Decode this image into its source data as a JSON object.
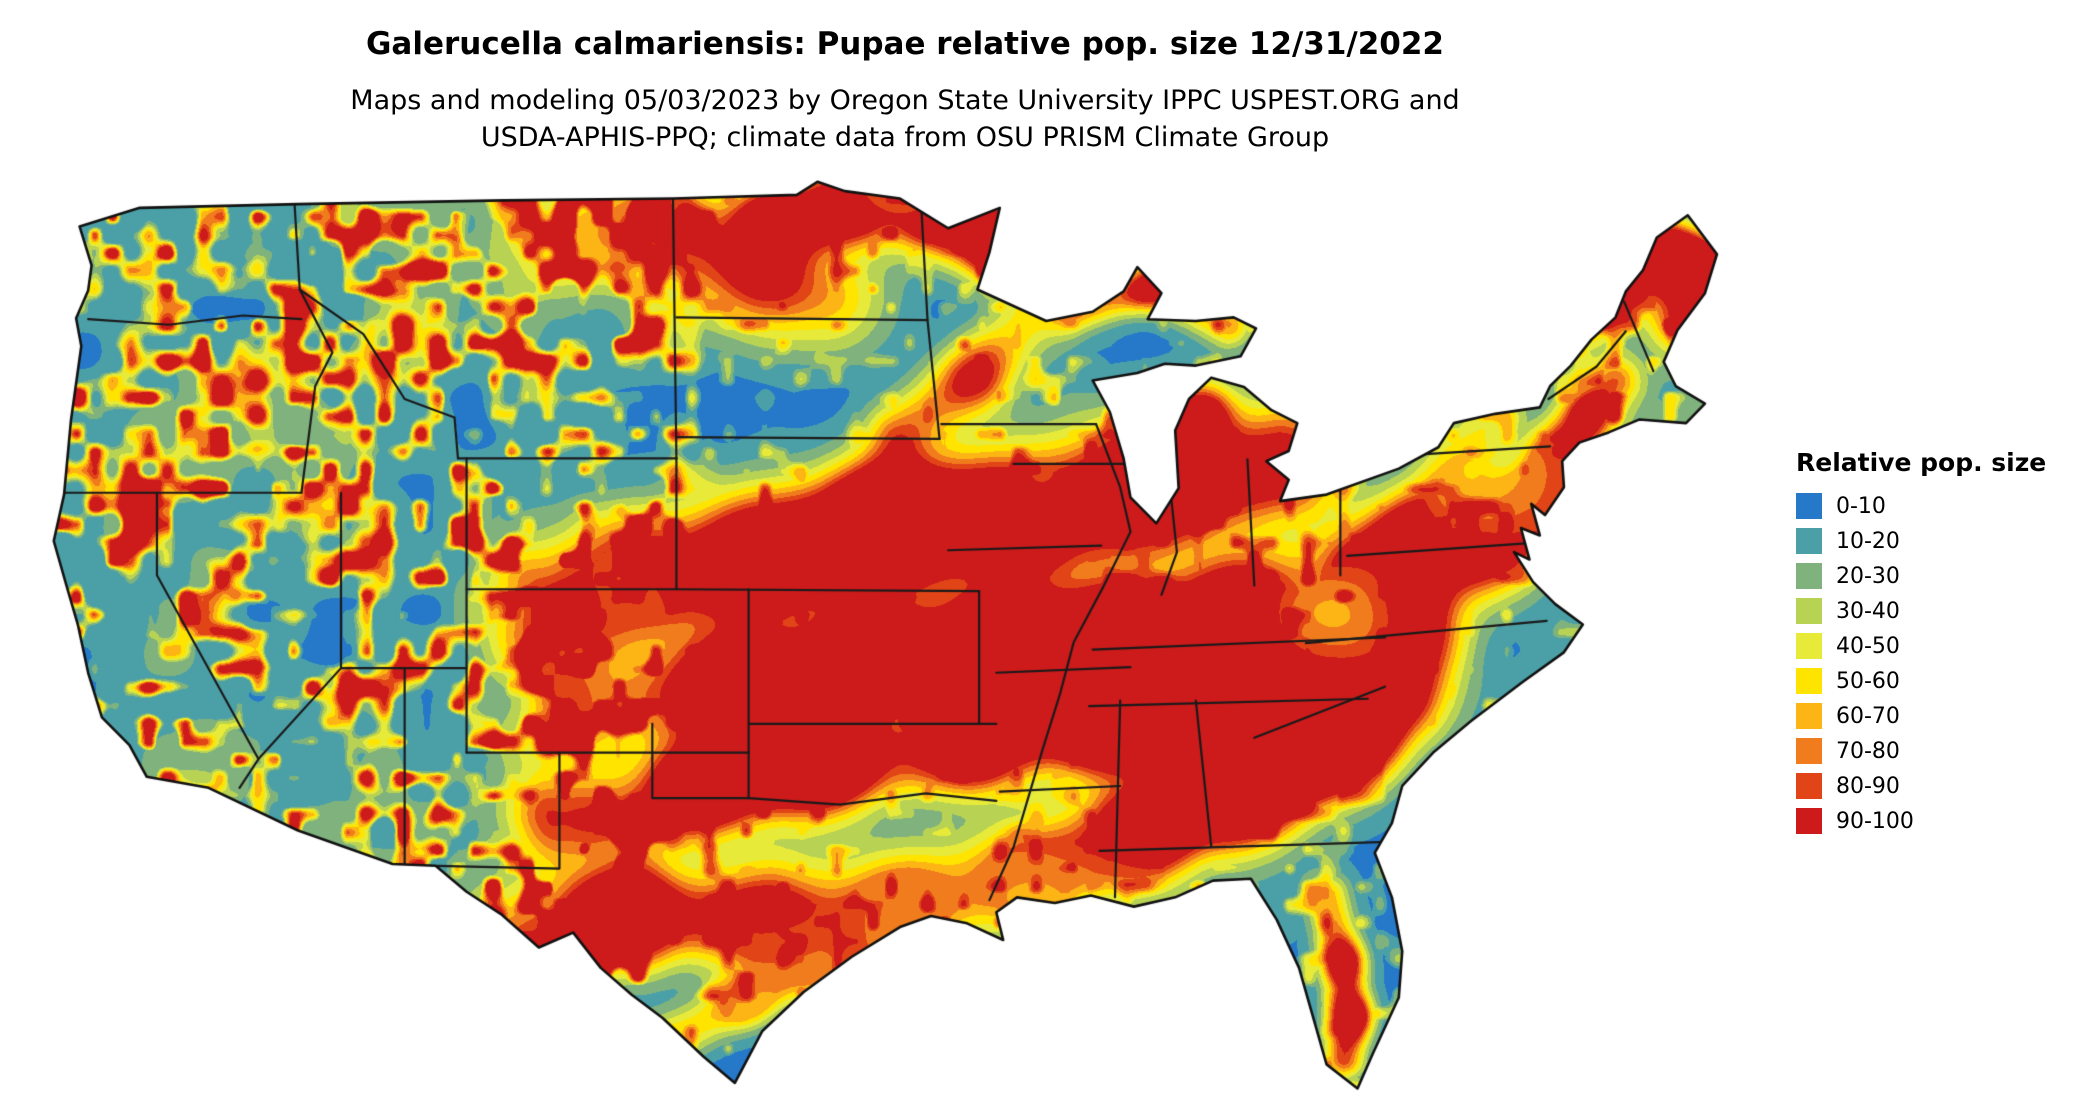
{
  "title": "Galerucella calmariensis: Pupae relative pop. size 12/31/2022",
  "subtitle": {
    "line1": "Maps and modeling 05/03/2023 by Oregon State University IPPC USPEST.ORG and",
    "line2": "USDA-APHIS-PPQ; climate data from OSU PRISM Climate Group"
  },
  "map": {
    "region": "Contiguous United States",
    "type": "raster-choropleth"
  },
  "legend": {
    "title": "Relative pop. size",
    "items": [
      {
        "label": "0-10",
        "color": "#2579c8"
      },
      {
        "label": "10-20",
        "color": "#4ba0a8"
      },
      {
        "label": "20-30",
        "color": "#7fb27d"
      },
      {
        "label": "30-40",
        "color": "#b8d254"
      },
      {
        "label": "40-50",
        "color": "#e7ea38"
      },
      {
        "label": "50-60",
        "color": "#ffe400"
      },
      {
        "label": "60-70",
        "color": "#fcb514"
      },
      {
        "label": "70-80",
        "color": "#f17c1d"
      },
      {
        "label": "80-90",
        "color": "#e04417"
      },
      {
        "label": "90-100",
        "color": "#cd1a1b"
      }
    ]
  }
}
